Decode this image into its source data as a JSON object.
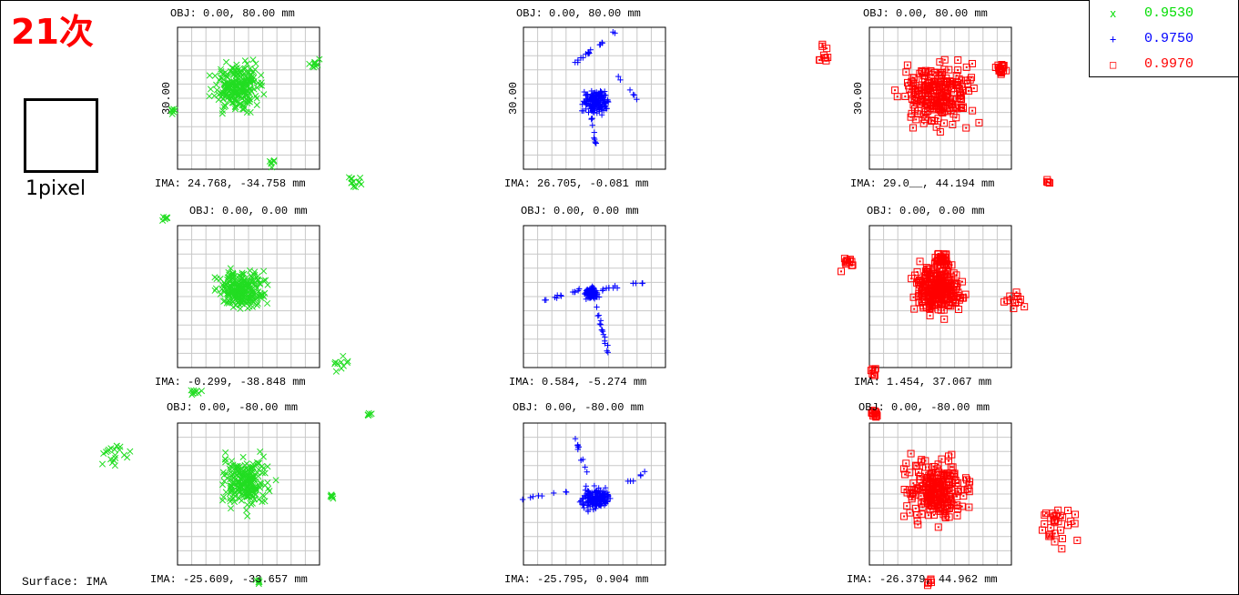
{
  "header": {
    "order_label": "21次",
    "pixel_label": "1pixel"
  },
  "footer": {
    "surface": "Surface: IMA"
  },
  "legend": [
    {
      "symbol": "x",
      "value": "0.9530",
      "color": "#00dd00"
    },
    {
      "symbol": "+",
      "value": "0.9750",
      "color": "#0000ff"
    },
    {
      "symbol": "□",
      "value": "0.9970",
      "color": "#ff0000"
    }
  ],
  "scale_label": "30.00",
  "panels": [
    {
      "obj": "OBJ: 0.00, 80.00 mm",
      "ima": "IMA: 24.768, -34.758 mm",
      "wavelength": "0.9530"
    },
    {
      "obj": "OBJ: 0.00, 80.00 mm",
      "ima": "IMA: 26.705, -0.081 mm",
      "wavelength": "0.9750"
    },
    {
      "obj": "OBJ: 0.00, 80.00 mm",
      "ima": "IMA: 29.0__, 44.194 mm",
      "wavelength": "0.9970"
    },
    {
      "obj": "OBJ: 0.00, 0.00 mm",
      "ima": "IMA: -0.299, -38.848 mm",
      "wavelength": "0.9530"
    },
    {
      "obj": "OBJ: 0.00, 0.00 mm",
      "ima": "IMA: 0.584, -5.274 mm",
      "wavelength": "0.9750"
    },
    {
      "obj": "OBJ: 0.00, 0.00 mm",
      "ima": "IMA: 1.454, 37.067 mm",
      "wavelength": "0.9970"
    },
    {
      "obj": "OBJ: 0.00, -80.00 mm",
      "ima": "IMA: -25.609, -33.657 mm",
      "wavelength": "0.9530"
    },
    {
      "obj": "OBJ: 0.00, -80.00 mm",
      "ima": "IMA: -25.795, 0.904 mm",
      "wavelength": "0.9750"
    },
    {
      "obj": "OBJ: 0.00, -80.00 mm",
      "ima": "IMA: -26.379, 44.962 mm",
      "wavelength": "0.9970"
    }
  ],
  "chart_data": {
    "type": "scatter",
    "title": "",
    "xlabel": "",
    "ylabel": "",
    "box_size": 30.0,
    "grid": true,
    "legend_placement": "top-right",
    "series": [
      {
        "name": "0.9530",
        "marker": "x",
        "color": "#00dd00"
      },
      {
        "name": "0.9750",
        "marker": "+",
        "color": "#0000ff"
      },
      {
        "name": "0.9970",
        "marker": "square",
        "color": "#ff0000"
      }
    ]
  }
}
